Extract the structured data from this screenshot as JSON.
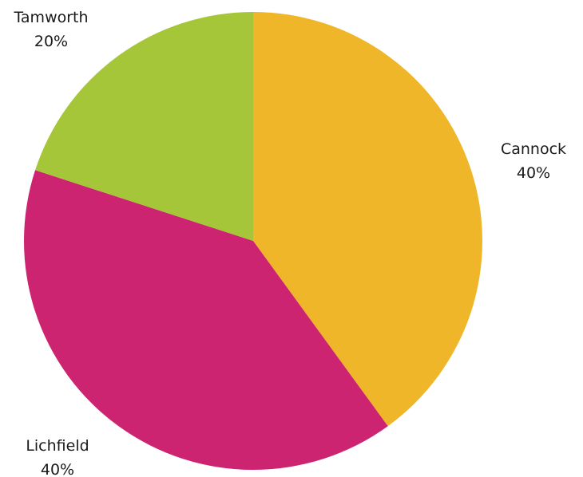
{
  "chart_data": {
    "type": "pie",
    "title": "",
    "start_angle_deg": 0,
    "direction": "clockwise",
    "slices": [
      {
        "label": "Cannock",
        "value": 40,
        "value_label": "40%",
        "color": "#f0b629"
      },
      {
        "label": "Lichfield",
        "value": 40,
        "value_label": "40%",
        "color": "#cc2470"
      },
      {
        "label": "Tamworth",
        "value": 20,
        "value_label": "20%",
        "color": "#a6c63a"
      }
    ]
  }
}
